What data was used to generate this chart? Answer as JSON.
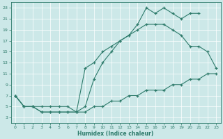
{
  "xlabel": "Humidex (Indice chaleur)",
  "bg_color": "#cce8e8",
  "line_color": "#2e7b6b",
  "xlim": [
    -0.5,
    23.5
  ],
  "ylim": [
    2,
    24
  ],
  "xticks": [
    0,
    1,
    2,
    3,
    4,
    5,
    6,
    7,
    8,
    9,
    10,
    11,
    12,
    13,
    14,
    15,
    16,
    17,
    18,
    19,
    20,
    21,
    22,
    23
  ],
  "yticks": [
    3,
    5,
    7,
    9,
    11,
    13,
    15,
    17,
    19,
    21,
    23
  ],
  "upper_x": [
    0,
    1,
    2,
    3,
    4,
    5,
    6,
    7,
    8,
    9,
    10,
    11,
    12,
    13,
    14,
    15,
    16,
    17,
    18,
    19,
    20,
    21
  ],
  "upper_y": [
    7,
    5,
    5,
    5,
    5,
    5,
    5,
    4,
    5,
    10,
    13,
    15,
    17,
    18,
    20,
    23,
    22,
    23,
    22,
    21,
    22,
    22
  ],
  "middle_x": [
    0,
    1,
    2,
    3,
    4,
    5,
    6,
    7,
    8,
    9,
    10,
    11,
    12,
    13,
    14,
    15,
    16,
    17,
    18,
    19,
    20,
    21,
    22,
    23
  ],
  "middle_y": [
    7,
    5,
    5,
    4,
    4,
    4,
    4,
    4,
    12,
    13,
    15,
    16,
    17,
    18,
    19,
    20,
    20,
    20,
    19,
    18,
    16,
    16,
    15,
    12
  ],
  "lower_x": [
    0,
    1,
    2,
    3,
    4,
    5,
    6,
    7,
    8,
    9,
    10,
    11,
    12,
    13,
    14,
    15,
    16,
    17,
    18,
    19,
    20,
    21,
    22,
    23
  ],
  "lower_y": [
    7,
    5,
    5,
    4,
    4,
    4,
    4,
    4,
    4,
    5,
    5,
    6,
    6,
    7,
    7,
    8,
    8,
    8,
    9,
    9,
    10,
    10,
    11,
    11
  ]
}
